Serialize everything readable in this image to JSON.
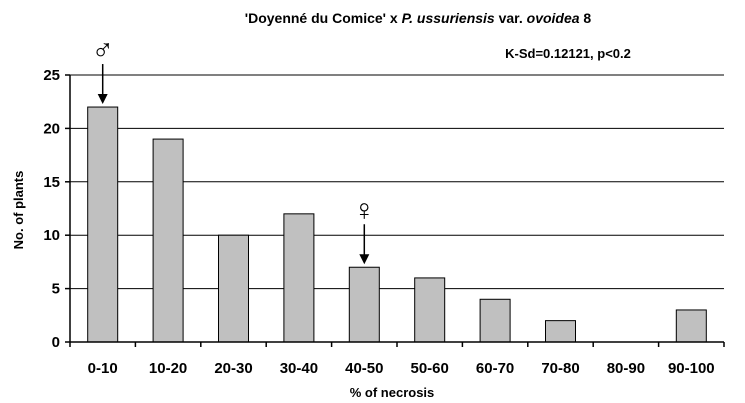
{
  "chart_data": {
    "type": "bar",
    "title_parts": [
      {
        "text": "'Doyenné du Comice' x ",
        "italic": false
      },
      {
        "text": "P. ussuriensis",
        "italic": true
      },
      {
        "text": " var. ",
        "italic": false
      },
      {
        "text": "ovoidea",
        "italic": true
      },
      {
        "text": " 8",
        "italic": false
      }
    ],
    "annotation": "K-Sd=0.12121, p<0.2",
    "xlabel": "% of necrosis",
    "ylabel": "No. of plants",
    "categories": [
      "0-10",
      "10-20",
      "20-30",
      "30-40",
      "40-50",
      "50-60",
      "60-70",
      "70-80",
      "80-90",
      "90-100"
    ],
    "values": [
      22,
      19,
      10,
      12,
      7,
      6,
      4,
      2,
      0,
      3
    ],
    "ylim": [
      0,
      25
    ],
    "yticks": [
      0,
      5,
      10,
      15,
      20,
      25
    ],
    "grid": true,
    "bar_color": "#c0c0c0",
    "markers": [
      {
        "symbol": "♂",
        "category": "0-10"
      },
      {
        "symbol": "♀",
        "category": "40-50"
      }
    ]
  }
}
